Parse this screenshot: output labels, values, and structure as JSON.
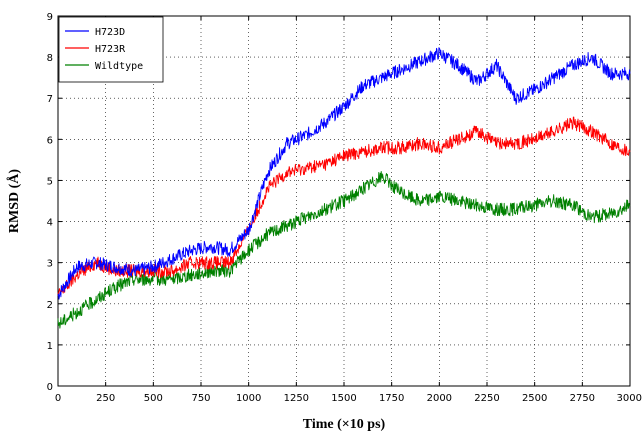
{
  "chart_data": {
    "type": "line",
    "title": "",
    "xlabel": "Time (×10 ps)",
    "ylabel": "RMSD (Å)",
    "xlim": [
      0,
      3000
    ],
    "ylim": [
      0,
      9
    ],
    "xticks": [
      0,
      250,
      500,
      750,
      1000,
      1250,
      1500,
      1750,
      2000,
      2250,
      2500,
      2750,
      3000
    ],
    "yticks": [
      0,
      1,
      2,
      3,
      4,
      5,
      6,
      7,
      8,
      9
    ],
    "grid": true,
    "legend_position": "top-left",
    "x": [
      0,
      100,
      200,
      300,
      400,
      500,
      600,
      700,
      800,
      900,
      1000,
      1100,
      1200,
      1300,
      1400,
      1500,
      1600,
      1700,
      1800,
      1900,
      2000,
      2100,
      2200,
      2300,
      2400,
      2500,
      2600,
      2700,
      2800,
      2900,
      3000
    ],
    "series": [
      {
        "name": "H723D",
        "color": "#0000ff",
        "values": [
          2.2,
          2.9,
          3.0,
          2.9,
          2.8,
          2.9,
          3.1,
          3.3,
          3.4,
          3.3,
          3.8,
          5.2,
          5.9,
          6.1,
          6.4,
          6.8,
          7.3,
          7.5,
          7.7,
          7.9,
          8.1,
          7.8,
          7.4,
          7.8,
          7.0,
          7.2,
          7.5,
          7.8,
          8.0,
          7.6,
          7.6
        ]
      },
      {
        "name": "H723R",
        "color": "#ff0000",
        "values": [
          2.2,
          2.7,
          3.0,
          2.8,
          2.8,
          2.8,
          2.8,
          3.0,
          3.0,
          3.0,
          3.8,
          4.8,
          5.2,
          5.3,
          5.4,
          5.6,
          5.7,
          5.8,
          5.8,
          5.9,
          5.8,
          6.0,
          6.2,
          5.9,
          5.9,
          6.0,
          6.2,
          6.4,
          6.2,
          5.9,
          5.7
        ]
      },
      {
        "name": "Wildtype",
        "color": "#008000",
        "values": [
          1.5,
          1.8,
          2.1,
          2.4,
          2.6,
          2.6,
          2.6,
          2.7,
          2.8,
          2.8,
          3.3,
          3.7,
          3.9,
          4.1,
          4.3,
          4.5,
          4.8,
          5.1,
          4.7,
          4.5,
          4.6,
          4.5,
          4.4,
          4.3,
          4.3,
          4.4,
          4.5,
          4.4,
          4.1,
          4.2,
          4.4
        ]
      }
    ]
  }
}
